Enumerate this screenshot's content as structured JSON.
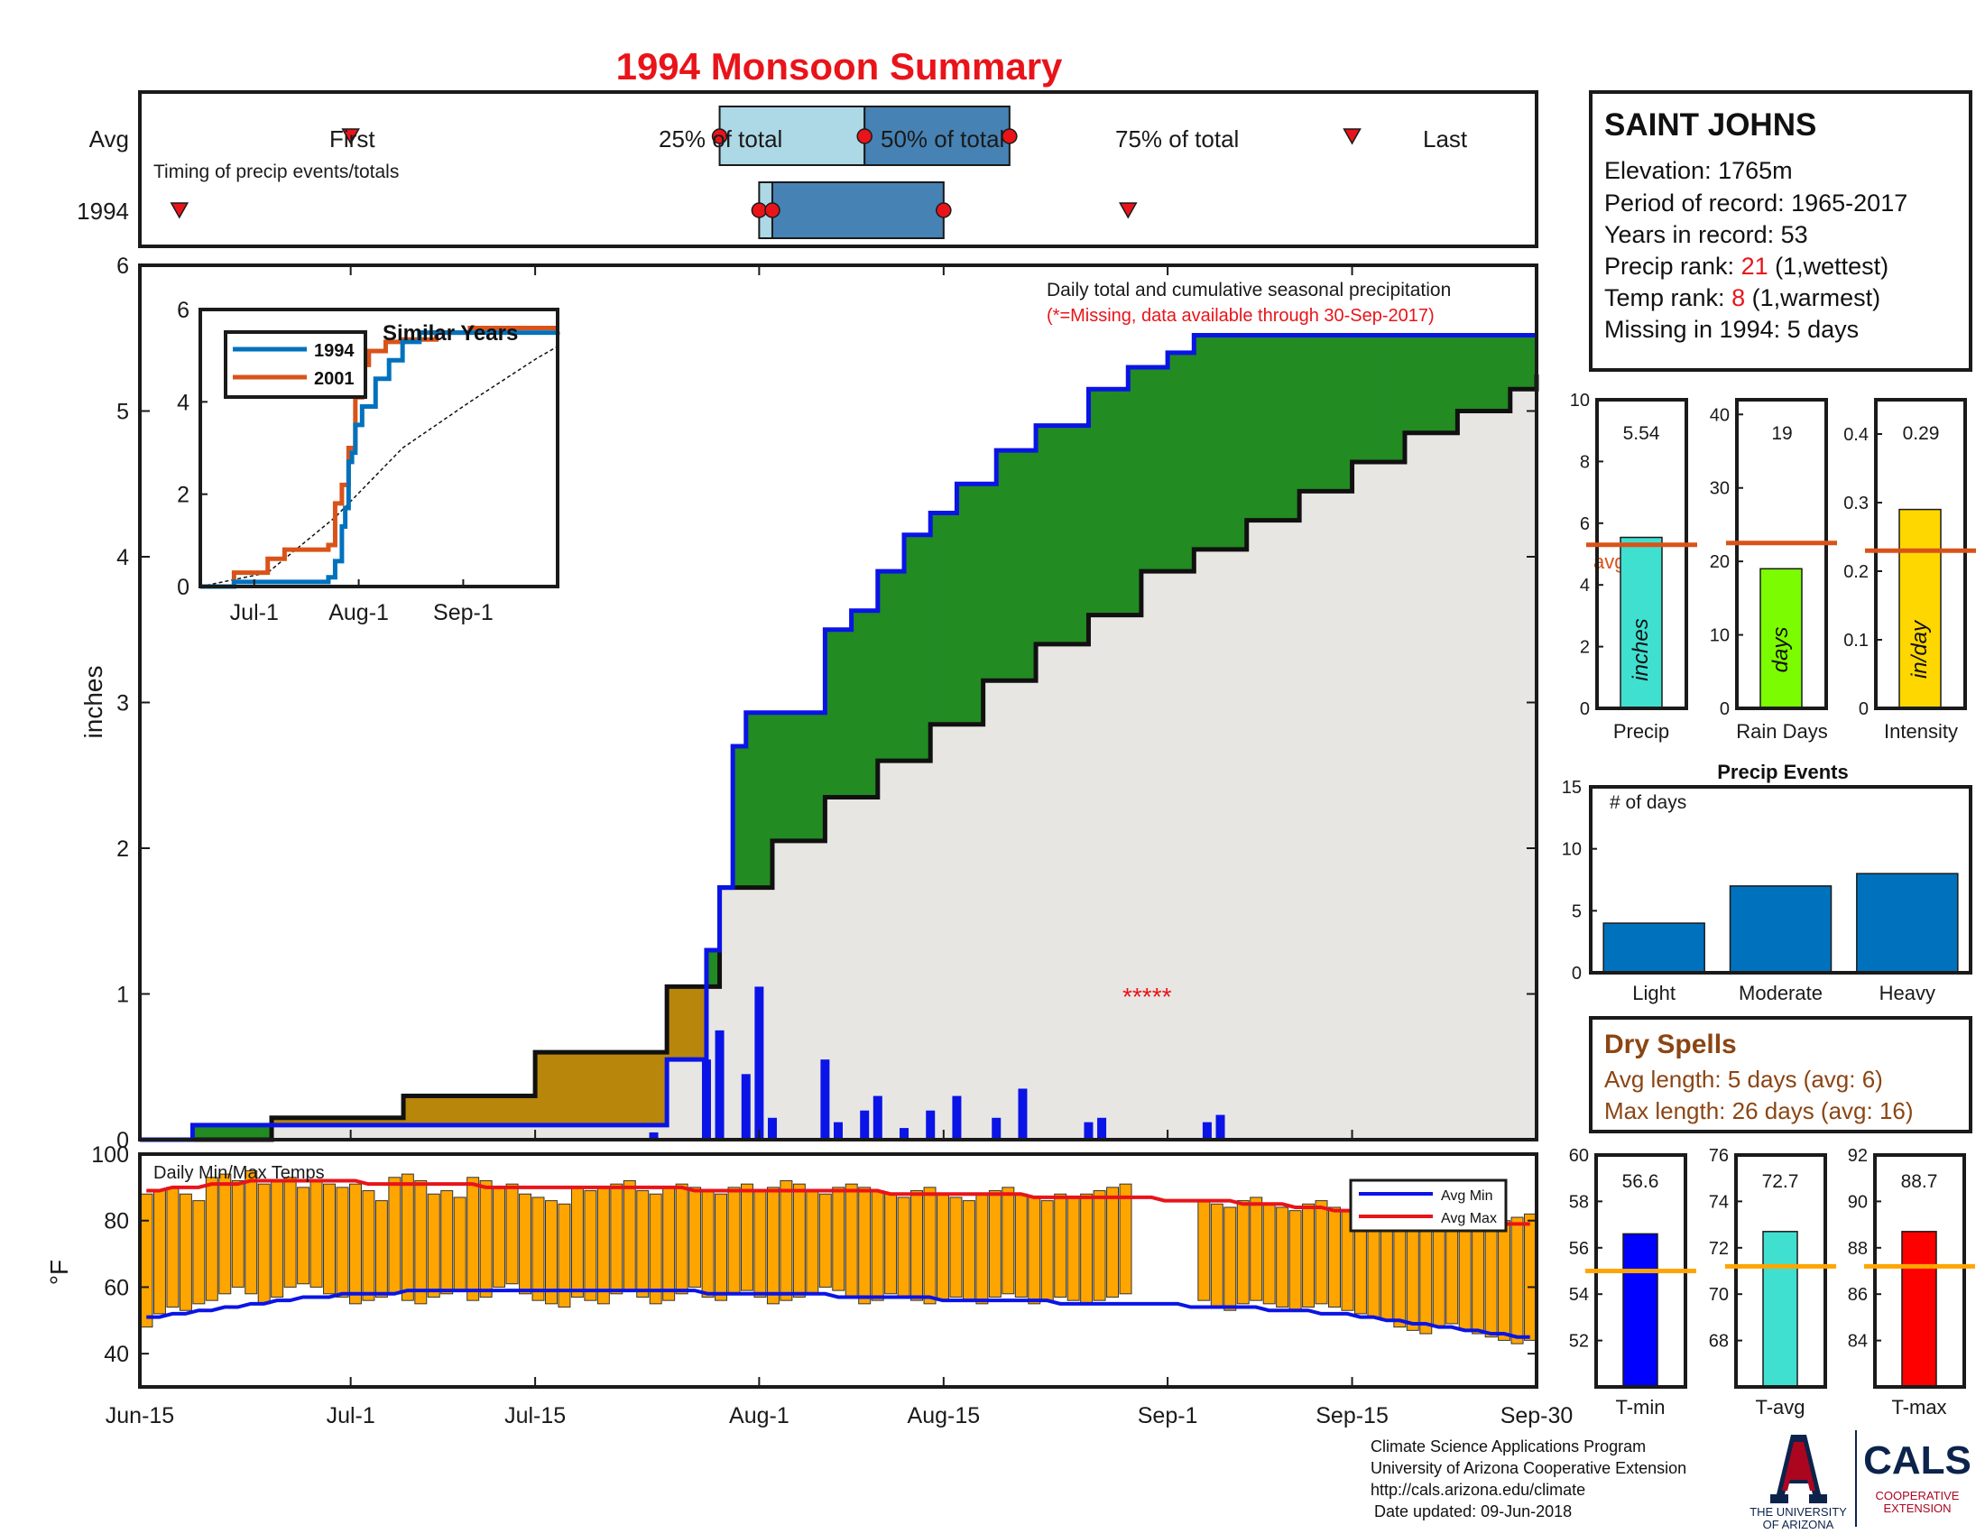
{
  "title": "1994 Monsoon Summary",
  "timing": {
    "row_avg": "Avg",
    "row_year": "1994",
    "caption": "Timing of precip events/totals",
    "first": "First",
    "p25": "25% of total",
    "p50": "50% of total",
    "p75": "75% of total",
    "last": "Last",
    "avg_days": {
      "first": 16,
      "p25": 44,
      "p50": 55,
      "p75": 66,
      "last": 92
    },
    "year_days": {
      "first": 3,
      "p25": 47,
      "p50": 48,
      "p75": 61,
      "last": 75
    }
  },
  "station": {
    "name": "SAINT JOHNS",
    "elevation_label": "Elevation: 1765m",
    "period_label": "Period of record: 1965-2017",
    "years_label": "Years in record: 53",
    "precip_rank_prefix": "Precip rank: ",
    "precip_rank": "21",
    "precip_rank_suffix": " (1,wettest)",
    "temp_rank_prefix": "Temp rank: ",
    "temp_rank": "8",
    "temp_rank_suffix": " (1,warmest)",
    "missing_label": "Missing in 1994: 5 days"
  },
  "main_chart": {
    "ylabel": "inches",
    "caption": "Daily total and cumulative seasonal precipitation",
    "missing_note": "(*=Missing, data available through 30-Sep-2017)",
    "missing_marker": "*****",
    "x_ticks": [
      "Jun-15",
      "Jul-1",
      "Jul-15",
      "Aug-1",
      "Aug-15",
      "Sep-1",
      "Sep-15",
      "Sep-30"
    ],
    "y_ticks": [
      "0",
      "1",
      "2",
      "3",
      "4",
      "5",
      "6"
    ]
  },
  "inset": {
    "title": "Similar Years",
    "legend": [
      "1994",
      "2001"
    ],
    "x_ticks": [
      "Jul-1",
      "Aug-1",
      "Sep-1"
    ],
    "y_ticks": [
      "0",
      "2",
      "4",
      "6"
    ]
  },
  "bars": {
    "precip": {
      "value_label": "5.54",
      "inner": "inches",
      "xlabel": "Precip",
      "avg_label": "avg",
      "ticks": [
        "0",
        "2",
        "4",
        "6",
        "8",
        "10"
      ]
    },
    "raindays": {
      "value_label": "19",
      "inner": "days",
      "xlabel": "Rain Days",
      "ticks": [
        "0",
        "10",
        "20",
        "30",
        "40"
      ]
    },
    "intensity": {
      "value_label": "0.29",
      "inner": "in/day",
      "xlabel": "Intensity",
      "ticks": [
        "0",
        "0.1",
        "0.2",
        "0.3",
        "0.4"
      ]
    }
  },
  "events": {
    "title": "Precip Events",
    "ylabel": "# of days",
    "categories": [
      "Light",
      "Moderate",
      "Heavy"
    ],
    "ticks": [
      "0",
      "5",
      "10",
      "15"
    ]
  },
  "dry_spells": {
    "title": "Dry Spells",
    "avg_line": "Avg length: 5 days (avg: 6)",
    "max_line": "Max length: 26 days (avg: 16)"
  },
  "temps": {
    "title": "Daily Min/Max Temps",
    "ylabel": "°F",
    "legend_min": "Avg Min",
    "legend_max": "Avg Max",
    "y_ticks": [
      "40",
      "60",
      "80",
      "100"
    ]
  },
  "temp_bars": {
    "tmin": {
      "value_label": "56.6",
      "xlabel": "T-min",
      "ticks": [
        "52",
        "54",
        "56",
        "58",
        "60"
      ]
    },
    "tavg": {
      "value_label": "72.7",
      "xlabel": "T-avg",
      "ticks": [
        "68",
        "70",
        "72",
        "74",
        "76"
      ]
    },
    "tmax": {
      "value_label": "88.7",
      "xlabel": "T-max",
      "ticks": [
        "84",
        "86",
        "88",
        "90",
        "92"
      ]
    }
  },
  "footer": {
    "line1": "Climate Science Applications Program",
    "line2": "University of Arizona Cooperative Extension",
    "line3": "http://cals.arizona.edu/climate",
    "line4": "Date updated: 09-Jun-2018",
    "ua_logo_text1": "THE UNIVERSITY",
    "ua_logo_text2": "OF ARIZONA",
    "cals_text": "CALS",
    "cals_sub1": "COOPERATIVE",
    "cals_sub2": "EXTENSION"
  },
  "colors": {
    "title_red": "#e8141a",
    "green_fill": "#228b22",
    "brown_fill": "#b8860b",
    "gray_fill": "#e8e6e3",
    "blue": "#0a14e6",
    "light_blue_box": "#add8e6",
    "steel_blue_box": "#4682b4",
    "orange_bar": "#ffa500",
    "dry_brown": "#8b4513",
    "avg_line": "#d95319"
  },
  "chart_data": [
    {
      "type": "area",
      "title": "1994 Monsoon Summary",
      "caption": "Daily total and cumulative seasonal precipitation",
      "ylabel": "inches",
      "x_range": [
        "Jun-15",
        "Sep-30"
      ],
      "ylim": [
        0,
        6
      ],
      "series": [
        {
          "name": "1994 cumulative (blue)",
          "x": [
            0,
            4,
            20,
            29,
            39,
            40,
            42,
            43,
            44,
            45,
            46,
            48,
            52,
            54,
            56,
            58,
            60,
            62,
            65,
            68,
            70,
            72,
            75,
            78,
            80,
            82,
            85,
            90,
            95,
            106
          ],
          "y": [
            0,
            0.1,
            0.1,
            0.1,
            0.1,
            0.55,
            0.55,
            1.3,
            1.73,
            2.7,
            2.93,
            2.93,
            3.5,
            3.63,
            3.9,
            4.15,
            4.3,
            4.5,
            4.73,
            4.9,
            4.9,
            5.15,
            5.3,
            5.4,
            5.52,
            5.52,
            5.52,
            5.52,
            5.52,
            5.52
          ]
        },
        {
          "name": "average cumulative (black)",
          "x": [
            0,
            10,
            20,
            30,
            40,
            44,
            48,
            52,
            56,
            60,
            64,
            68,
            72,
            76,
            80,
            84,
            88,
            92,
            96,
            100,
            104,
            106
          ],
          "y": [
            0,
            0.15,
            0.3,
            0.6,
            1.05,
            1.73,
            2.05,
            2.35,
            2.6,
            2.85,
            3.15,
            3.4,
            3.6,
            3.9,
            4.05,
            4.25,
            4.45,
            4.65,
            4.85,
            5.0,
            5.15,
            5.25
          ]
        }
      ],
      "daily_precip": {
        "days": [
          39,
          43,
          44,
          46,
          47,
          48,
          52,
          53,
          55,
          56,
          58,
          60,
          62,
          65,
          67,
          72,
          73,
          81,
          82
        ],
        "values": [
          0.05,
          0.55,
          0.75,
          0.45,
          1.05,
          0.15,
          0.55,
          0.12,
          0.2,
          0.3,
          0.08,
          0.2,
          0.3,
          0.15,
          0.35,
          0.12,
          0.15,
          0.12,
          0.17
        ]
      },
      "missing_days": [
        76,
        77,
        78,
        79,
        80
      ]
    },
    {
      "type": "line",
      "title": "Similar Years",
      "xlim": [
        "Jun-15",
        "Sep-30"
      ],
      "ylim": [
        0,
        6
      ],
      "series": [
        {
          "name": "1994",
          "x": [
            0,
            10,
            20,
            30,
            38,
            40,
            42,
            43,
            44,
            45,
            46,
            48,
            52,
            56,
            60,
            65,
            106
          ],
          "y": [
            0,
            0.1,
            0.1,
            0.1,
            0.2,
            0.55,
            1.3,
            1.7,
            2.7,
            2.9,
            3.5,
            3.9,
            4.5,
            4.9,
            5.3,
            5.5,
            5.52
          ]
        },
        {
          "name": "2001",
          "x": [
            0,
            10,
            20,
            25,
            30,
            38,
            40,
            42,
            44,
            46,
            48,
            50,
            55,
            60,
            70,
            80,
            106
          ],
          "y": [
            0,
            0.3,
            0.6,
            0.8,
            0.8,
            0.9,
            1.8,
            2.2,
            3.0,
            4.1,
            4.8,
            5.1,
            5.3,
            5.35,
            5.5,
            5.6,
            5.6
          ]
        },
        {
          "name": "average",
          "x": [
            0,
            20,
            40,
            60,
            80,
            100,
            106
          ],
          "y": [
            0,
            0.3,
            1.5,
            3.0,
            4.0,
            4.95,
            5.2
          ]
        }
      ]
    },
    {
      "type": "bar",
      "categories": [
        "Precip",
        "Rain Days",
        "Intensity"
      ],
      "values": [
        5.54,
        19,
        0.29
      ],
      "averages": [
        5.3,
        22.5,
        0.23
      ],
      "ylims": [
        [
          0,
          10
        ],
        [
          0,
          42
        ],
        [
          0,
          0.45
        ]
      ]
    },
    {
      "type": "bar",
      "title": "Precip Events",
      "ylabel": "# of days",
      "categories": [
        "Light",
        "Moderate",
        "Heavy"
      ],
      "values": [
        4,
        7,
        8
      ],
      "ylim": [
        0,
        15
      ]
    },
    {
      "type": "bar",
      "title": "Daily Min/Max Temps",
      "ylabel": "°F",
      "ylim": [
        30,
        100
      ],
      "days": [
        0,
        1,
        2,
        3,
        4,
        5,
        6,
        7,
        8,
        9,
        10,
        11,
        12,
        13,
        14,
        15,
        16,
        17,
        18,
        19,
        20,
        21,
        22,
        23,
        24,
        25,
        26,
        27,
        28,
        29,
        30,
        31,
        32,
        33,
        34,
        35,
        36,
        37,
        38,
        39,
        40,
        41,
        42,
        43,
        44,
        45,
        46,
        47,
        48,
        49,
        50,
        51,
        52,
        53,
        54,
        55,
        56,
        57,
        58,
        59,
        60,
        61,
        62,
        63,
        64,
        65,
        66,
        67,
        68,
        69,
        70,
        71,
        72,
        73,
        74,
        75,
        76,
        77,
        78,
        79,
        80,
        81,
        82,
        83,
        84,
        85,
        86,
        87,
        88,
        89,
        90,
        91,
        92,
        93,
        94,
        95,
        96,
        97,
        98,
        99,
        100,
        101,
        102,
        103,
        104,
        105,
        106
      ],
      "tmin": [
        48,
        52,
        54,
        53,
        55,
        56,
        58,
        60,
        58,
        55,
        57,
        60,
        61,
        60,
        58,
        57,
        55,
        56,
        57,
        58,
        56,
        55,
        57,
        58,
        59,
        56,
        57,
        60,
        61,
        58,
        56,
        55,
        54,
        57,
        56,
        55,
        58,
        59,
        57,
        55,
        56,
        58,
        60,
        57,
        56,
        58,
        59,
        57,
        55,
        56,
        57,
        58,
        60,
        59,
        57,
        55,
        56,
        58,
        57,
        56,
        55,
        56,
        57,
        56,
        55,
        57,
        58,
        57,
        55,
        56,
        57,
        56,
        55,
        56,
        57,
        58,
        null,
        null,
        null,
        null,
        null,
        56,
        54,
        53,
        55,
        56,
        55,
        54,
        53,
        54,
        55,
        54,
        53,
        52,
        51,
        50,
        48,
        47,
        46,
        48,
        49,
        47,
        46,
        45,
        44,
        43,
        44
      ],
      "tmax": [
        88,
        89,
        90,
        88,
        86,
        93,
        94,
        92,
        95,
        91,
        92,
        93,
        90,
        92,
        91,
        90,
        91,
        89,
        86,
        93,
        94,
        92,
        88,
        89,
        87,
        93,
        92,
        90,
        91,
        88,
        87,
        86,
        85,
        90,
        89,
        90,
        91,
        92,
        89,
        88,
        90,
        91,
        90,
        89,
        88,
        90,
        91,
        89,
        90,
        92,
        91,
        89,
        88,
        90,
        91,
        90,
        89,
        88,
        87,
        89,
        90,
        88,
        87,
        86,
        88,
        89,
        90,
        88,
        87,
        86,
        88,
        87,
        88,
        89,
        90,
        91,
        null,
        null,
        null,
        null,
        null,
        86,
        85,
        84,
        86,
        87,
        85,
        84,
        83,
        85,
        86,
        84,
        83,
        82,
        84,
        85,
        83,
        84,
        82,
        81,
        83,
        82,
        81,
        82,
        80,
        81,
        82
      ],
      "avg_min": [
        51,
        51,
        52,
        52,
        53,
        53,
        54,
        54,
        55,
        55,
        56,
        56,
        57,
        57,
        57,
        58,
        58,
        58,
        58,
        58,
        59,
        59,
        59,
        59,
        59,
        59,
        59,
        59,
        59,
        59,
        59,
        59,
        59,
        59,
        59,
        59,
        59,
        59,
        59,
        59,
        59,
        59,
        59,
        58,
        58,
        58,
        58,
        58,
        58,
        58,
        58,
        58,
        58,
        57,
        57,
        57,
        57,
        57,
        57,
        57,
        57,
        56,
        56,
        56,
        56,
        56,
        56,
        56,
        56,
        56,
        55,
        55,
        55,
        55,
        55,
        55,
        55,
        55,
        55,
        55,
        54,
        54,
        54,
        54,
        54,
        54,
        53,
        53,
        53,
        53,
        52,
        52,
        52,
        51,
        51,
        50,
        50,
        49,
        49,
        48,
        48,
        47,
        47,
        46,
        46,
        45,
        45
      ],
      "avg_max": [
        89,
        89,
        90,
        90,
        90,
        91,
        91,
        91,
        92,
        92,
        92,
        92,
        92,
        92,
        92,
        92,
        92,
        91,
        91,
        91,
        91,
        91,
        91,
        91,
        91,
        91,
        90,
        90,
        90,
        90,
        90,
        90,
        90,
        90,
        90,
        90,
        90,
        90,
        90,
        90,
        90,
        90,
        89,
        89,
        89,
        89,
        89,
        89,
        89,
        89,
        89,
        89,
        89,
        89,
        89,
        89,
        89,
        88,
        88,
        88,
        88,
        88,
        88,
        88,
        88,
        88,
        88,
        88,
        87,
        87,
        87,
        87,
        87,
        87,
        87,
        87,
        87,
        87,
        86,
        86,
        86,
        86,
        86,
        86,
        85,
        85,
        85,
        85,
        84,
        84,
        84,
        83,
        83,
        83,
        82,
        82,
        82,
        81,
        81,
        81,
        80,
        80,
        80,
        79,
        79,
        79,
        79
      ]
    },
    {
      "type": "bar",
      "categories": [
        "T-min",
        "T-avg",
        "T-max"
      ],
      "values": [
        56.6,
        72.7,
        88.7
      ],
      "averages": [
        55.0,
        71.2,
        87.2
      ],
      "ylims": [
        [
          50,
          60
        ],
        [
          66,
          76
        ],
        [
          82,
          92
        ]
      ]
    }
  ]
}
